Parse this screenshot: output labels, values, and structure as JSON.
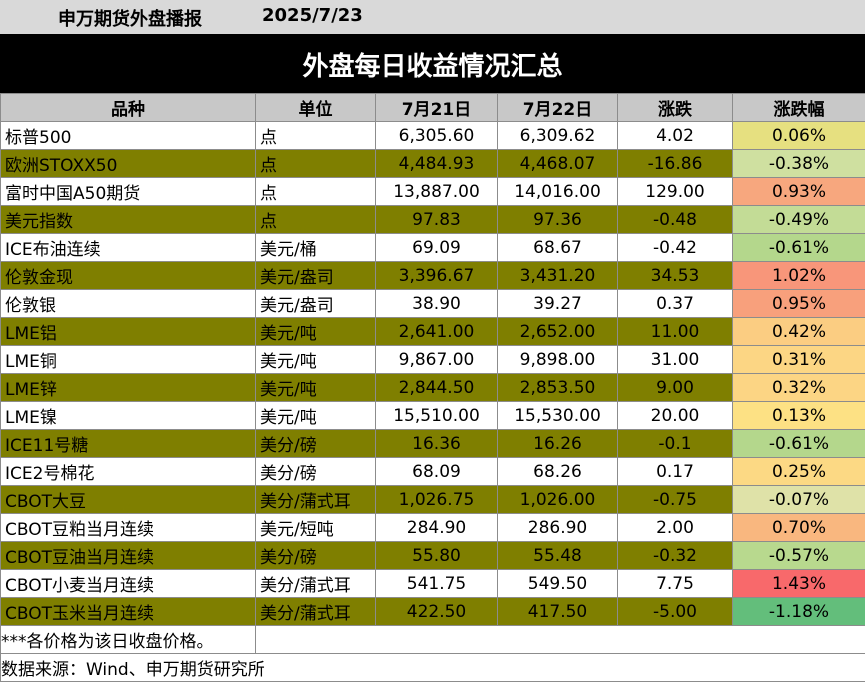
{
  "header": {
    "publisher": "申万期货外盘播报",
    "date": "2025/7/23",
    "title": "外盘每日收益情况汇总"
  },
  "table": {
    "columns": [
      "品种",
      "单位",
      "7月21日",
      "7月22日",
      "涨跌",
      "涨跌幅"
    ],
    "rows": [
      {
        "name": "标普500",
        "unit": "点",
        "d1": "6,305.60",
        "d2": "6,309.62",
        "chg": "4.02",
        "pct": "0.06%",
        "pct_value": 0.06,
        "color": "#e6e080"
      },
      {
        "name": "欧洲STOXX50",
        "unit": "点",
        "d1": "4,484.93",
        "d2": "4,468.07",
        "chg": "-16.86",
        "pct": "-0.38%",
        "pct_value": -0.38,
        "color": "#cfe0a0"
      },
      {
        "name": "富时中国A50期货",
        "unit": "点",
        "d1": "13,887.00",
        "d2": "14,016.00",
        "chg": "129.00",
        "pct": "0.93%",
        "pct_value": 0.93,
        "color": "#f7a77e"
      },
      {
        "name": "美元指数",
        "unit": "点",
        "d1": "97.83",
        "d2": "97.36",
        "chg": "-0.48",
        "pct": "-0.49%",
        "pct_value": -0.49,
        "color": "#c3dc96"
      },
      {
        "name": "ICE布油连续",
        "unit": "美元/桶",
        "d1": "69.09",
        "d2": "68.67",
        "chg": "-0.42",
        "pct": "-0.61%",
        "pct_value": -0.61,
        "color": "#b4d78c"
      },
      {
        "name": "伦敦金现",
        "unit": "美元/盎司",
        "d1": "3,396.67",
        "d2": "3,431.20",
        "chg": "34.53",
        "pct": "1.02%",
        "pct_value": 1.02,
        "color": "#f8967a"
      },
      {
        "name": "伦敦银",
        "unit": "美元/盎司",
        "d1": "38.90",
        "d2": "39.27",
        "chg": "0.37",
        "pct": "0.95%",
        "pct_value": 0.95,
        "color": "#f8a07c"
      },
      {
        "name": "LME铝",
        "unit": "美元/吨",
        "d1": "2,641.00",
        "d2": "2,652.00",
        "chg": "11.00",
        "pct": "0.42%",
        "pct_value": 0.42,
        "color": "#fbcd82"
      },
      {
        "name": "LME铜",
        "unit": "美元/吨",
        "d1": "9,867.00",
        "d2": "9,898.00",
        "chg": "31.00",
        "pct": "0.31%",
        "pct_value": 0.31,
        "color": "#fcd684"
      },
      {
        "name": "LME锌",
        "unit": "美元/吨",
        "d1": "2,844.50",
        "d2": "2,853.50",
        "chg": "9.00",
        "pct": "0.32%",
        "pct_value": 0.32,
        "color": "#fcd584"
      },
      {
        "name": "LME镍",
        "unit": "美元/吨",
        "d1": "15,510.00",
        "d2": "15,530.00",
        "chg": "20.00",
        "pct": "0.13%",
        "pct_value": 0.13,
        "color": "#fde184"
      },
      {
        "name": "ICE11号糖",
        "unit": "美分/磅",
        "d1": "16.36",
        "d2": "16.26",
        "chg": "-0.1",
        "pct": "-0.61%",
        "pct_value": -0.61,
        "color": "#b4d78c"
      },
      {
        "name": "ICE2号棉花",
        "unit": "美分/磅",
        "d1": "68.09",
        "d2": "68.26",
        "chg": "0.17",
        "pct": "0.25%",
        "pct_value": 0.25,
        "color": "#fcd984"
      },
      {
        "name": "CBOT大豆",
        "unit": "美分/蒲式耳",
        "d1": "1,026.75",
        "d2": "1,026.00",
        "chg": "-0.75",
        "pct": "-0.07%",
        "pct_value": -0.07,
        "color": "#dfe2a8"
      },
      {
        "name": "CBOT豆粕当月连续",
        "unit": "美元/短吨",
        "d1": "284.90",
        "d2": "286.90",
        "chg": "2.00",
        "pct": "0.70%",
        "pct_value": 0.7,
        "color": "#f9b77f"
      },
      {
        "name": "CBOT豆油当月连续",
        "unit": "美分/磅",
        "d1": "55.80",
        "d2": "55.48",
        "chg": "-0.32",
        "pct": "-0.57%",
        "pct_value": -0.57,
        "color": "#b8d98e"
      },
      {
        "name": "CBOT小麦当月连续",
        "unit": "美分/蒲式耳",
        "d1": "541.75",
        "d2": "549.50",
        "chg": "7.75",
        "pct": "1.43%",
        "pct_value": 1.43,
        "color": "#f8696b"
      },
      {
        "name": "CBOT玉米当月连续",
        "unit": "美分/蒲式耳",
        "d1": "422.50",
        "d2": "417.50",
        "chg": "-5.00",
        "pct": "-1.18%",
        "pct_value": -1.18,
        "color": "#63be7b"
      }
    ]
  },
  "footer": {
    "note": "***各价格为该日收盘价格。",
    "source": "数据来源：Wind、申万期货研究所"
  }
}
